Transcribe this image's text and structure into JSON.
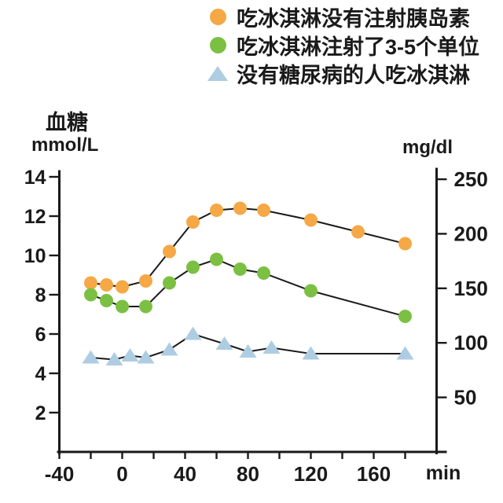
{
  "chart_data": {
    "type": "line",
    "title": "",
    "y_axis_left": {
      "title": "血糖",
      "unit": "mmol/L",
      "ticks": [
        14,
        12,
        10,
        8,
        6,
        4,
        2
      ],
      "range": [
        0,
        14.3
      ]
    },
    "y_axis_right": {
      "unit": "mg/dl",
      "ticks": [
        250,
        200,
        150,
        100,
        50
      ],
      "mg_per_mmol": 18.016
    },
    "x_axis": {
      "unit": "min",
      "labeled_ticks": [
        -40,
        0,
        40,
        80,
        120,
        160
      ],
      "minor_tick_step": 20,
      "range": [
        -40,
        200
      ]
    },
    "grid": "off",
    "legend_position": "top-right",
    "line_color": "#1a1a1a",
    "series": [
      {
        "name": "no-insulin",
        "label": "吃冰淇淋没有注射胰岛素",
        "marker": "circle",
        "color": "#F5A845",
        "x": [
          -20,
          -10,
          0,
          15,
          30,
          45,
          60,
          75,
          90,
          120,
          150,
          180
        ],
        "y": [
          8.6,
          8.5,
          8.4,
          8.7,
          10.2,
          11.7,
          12.3,
          12.4,
          12.3,
          11.8,
          11.2,
          10.6
        ]
      },
      {
        "name": "insulin-3-5-units",
        "label": "吃冰淇淋注射了3-5个单位",
        "marker": "circle",
        "color": "#7CC043",
        "x": [
          -20,
          -10,
          0,
          15,
          30,
          45,
          60,
          75,
          90,
          120,
          180
        ],
        "y": [
          8.0,
          7.7,
          7.4,
          7.4,
          8.6,
          9.4,
          9.8,
          9.3,
          9.1,
          8.2,
          6.9
        ]
      },
      {
        "name": "non-diabetic",
        "label": "没有糖尿病的人吃冰淇淋",
        "marker": "triangle",
        "color": "#AECDE2",
        "x": [
          -20,
          -5,
          5,
          15,
          30,
          45,
          65,
          80,
          95,
          120,
          180
        ],
        "y": [
          4.8,
          4.7,
          4.9,
          4.8,
          5.2,
          6.0,
          5.5,
          5.1,
          5.3,
          5.0,
          5.0
        ]
      }
    ]
  }
}
